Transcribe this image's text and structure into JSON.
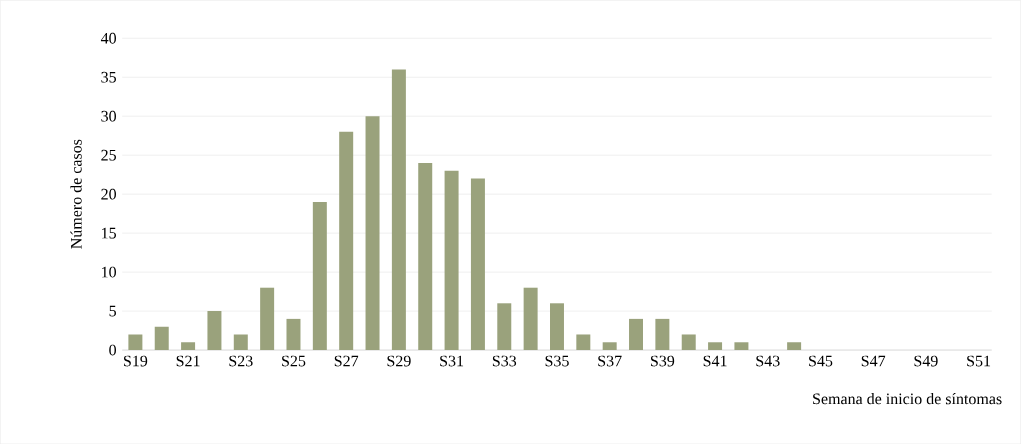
{
  "chart_data": {
    "type": "bar",
    "xlabel": "Semana de inicio de síntomas",
    "ylabel": "Número de casos",
    "categories": [
      "S19",
      null,
      "S21",
      null,
      "S23",
      null,
      "S25",
      null,
      "S27",
      null,
      "S29",
      null,
      "S31",
      null,
      "S33",
      null,
      "S35",
      null,
      "S37",
      null,
      "S39",
      null,
      "S41",
      null,
      "S43",
      null,
      "S45",
      null,
      "S47",
      null,
      "S49",
      null,
      "S51"
    ],
    "values": [
      2,
      3,
      1,
      5,
      2,
      8,
      4,
      19,
      28,
      30,
      36,
      24,
      23,
      22,
      6,
      8,
      6,
      2,
      1,
      4,
      4,
      2,
      1,
      1,
      0,
      1,
      0,
      0,
      0,
      0,
      0,
      0,
      0
    ],
    "color": "#9aa27c",
    "ylim": [
      0,
      40
    ],
    "yticks": [
      0,
      5,
      10,
      15,
      20,
      25,
      30,
      35,
      40
    ],
    "grid": "y"
  }
}
